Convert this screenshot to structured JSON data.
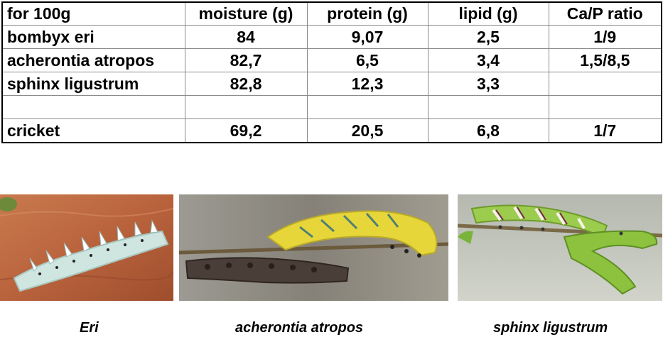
{
  "table": {
    "headers": [
      "for 100g",
      "moisture (g)",
      "protein (g)",
      "lipid (g)",
      "Ca/P ratio"
    ],
    "rows": [
      [
        "bombyx eri",
        "84",
        "9,07",
        "2,5",
        "1/9"
      ],
      [
        "acherontia atropos",
        "82,7",
        "6,5",
        "3,4",
        "1,5/8,5"
      ],
      [
        "sphinx ligustrum",
        "82,8",
        "12,3",
        "3,3",
        ""
      ],
      [
        "",
        "",
        "",
        "",
        ""
      ],
      [
        "cricket",
        "69,2",
        "20,5",
        "6,8",
        "1/7"
      ]
    ]
  },
  "photos": [
    {
      "caption": "Eri",
      "icon": "eri-caterpillar-photo",
      "body_color": "#cfe6e0",
      "background": "#b9633d"
    },
    {
      "caption": "acherontia atropos",
      "icon": "acherontia-caterpillar-photo",
      "body_color": "#e6d63a",
      "background": "#8b8880"
    },
    {
      "caption": "sphinx ligustrum",
      "icon": "sphinx-caterpillar-photo",
      "body_color": "#9ccc4e",
      "background": "#c4c8c0"
    }
  ]
}
